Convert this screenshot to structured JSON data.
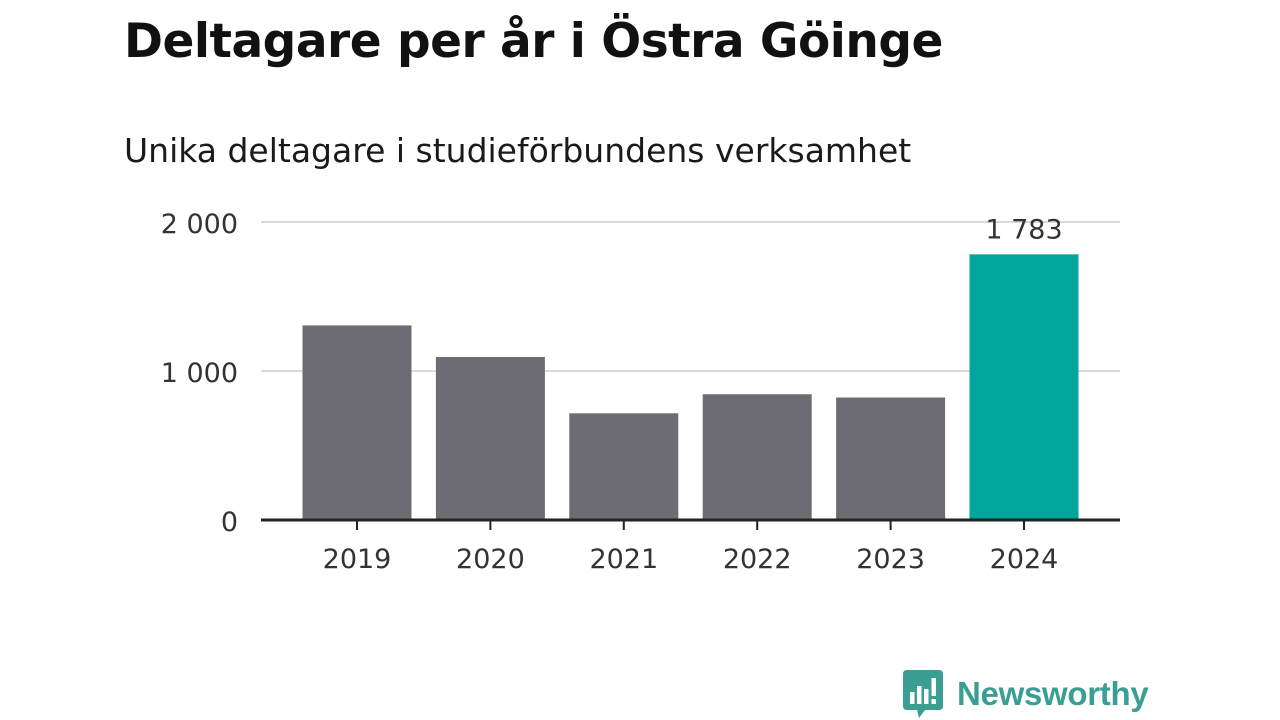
{
  "title": "Deltagare per år i Östra Göinge",
  "subtitle": "Unika deltagare i studieförbundens verksamhet",
  "brand": {
    "name": "Newsworthy",
    "icon": "newsworthy-logo-icon",
    "color": "#3a9e92"
  },
  "colors": {
    "bar": "#6d6c73",
    "highlight": "#00a59b",
    "grid": "#d9d9d9",
    "axis": "#222222"
  },
  "chart_data": {
    "type": "bar",
    "title": "Deltagare per år i Östra Göinge",
    "subtitle": "Unika deltagare i studieförbundens verksamhet",
    "xlabel": "",
    "ylabel": "",
    "categories": [
      "2019",
      "2020",
      "2021",
      "2022",
      "2023",
      "2024"
    ],
    "values": [
      1306,
      1094,
      716,
      844,
      822,
      1783
    ],
    "highlight_index": 5,
    "data_labels": [
      {
        "index": 5,
        "text": "1 783"
      }
    ],
    "ylim": [
      0,
      2000
    ],
    "yticks": [
      {
        "value": 0,
        "label": "0"
      },
      {
        "value": 1000,
        "label": "1 000"
      },
      {
        "value": 2000,
        "label": "2 000"
      }
    ],
    "grid": true,
    "legend": "none"
  }
}
